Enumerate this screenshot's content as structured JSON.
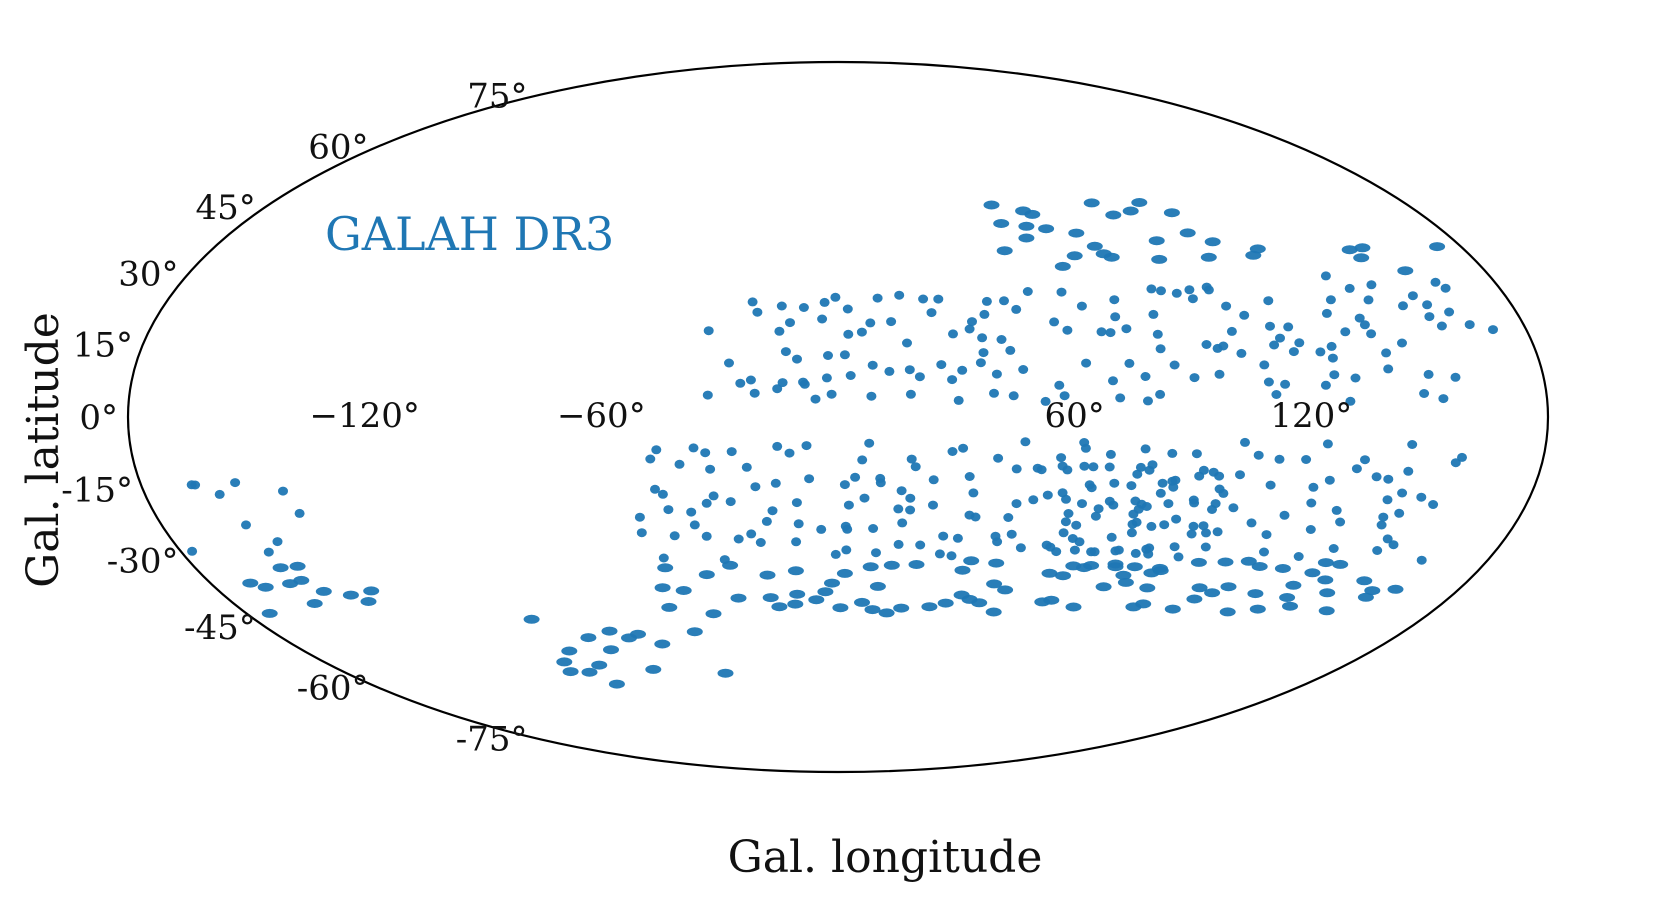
{
  "chart_data": {
    "type": "scatter",
    "projection": "mollweide",
    "annotation": "GALAH DR3",
    "xlabel": "Gal. longitude",
    "ylabel": "Gal. latitude",
    "xlim": [
      -180,
      180
    ],
    "ylim": [
      -90,
      90
    ],
    "x_tick_labels": [
      "−120°",
      "−60°",
      "60°",
      "120°"
    ],
    "x_tick_values": [
      -120,
      -60,
      60,
      120
    ],
    "y_tick_labels": [
      "75°",
      "60°",
      "45°",
      "30°",
      "15°",
      "0°",
      "-15°",
      "-30°",
      "-45°",
      "-60°",
      "-75°"
    ],
    "y_tick_values": [
      75,
      60,
      45,
      30,
      15,
      0,
      -15,
      -30,
      -45,
      -60,
      -75
    ],
    "grid": false,
    "legend": "none",
    "color": "#1f77b4",
    "series": [
      {
        "regions": [
          {
            "l": [
              -32,
              160
            ],
            "b": [
              4,
              25
            ],
            "density": 0.9
          },
          {
            "l": [
              -50,
              160
            ],
            "b": [
              -40,
              -5
            ],
            "density": 0.9
          },
          {
            "l": [
              60,
              100
            ],
            "b": [
              -32,
              -10
            ],
            "density": 1.5
          },
          {
            "l": [
              45,
              125
            ],
            "b": [
              28,
              48
            ],
            "density": 0.45
          },
          {
            "l": [
              135,
              175
            ],
            "b": [
              20,
              38
            ],
            "density": 0.6
          },
          {
            "l": [
              -175,
              -135
            ],
            "b": [
              -40,
              -12
            ],
            "density": 0.5
          },
          {
            "l": [
              -95,
              -35
            ],
            "b": [
              -60,
              -40
            ],
            "density": 0.4
          },
          {
            "l": [
              -10,
              10
            ],
            "b": [
              -5,
              8
            ],
            "density": 0.4
          }
        ]
      }
    ]
  }
}
